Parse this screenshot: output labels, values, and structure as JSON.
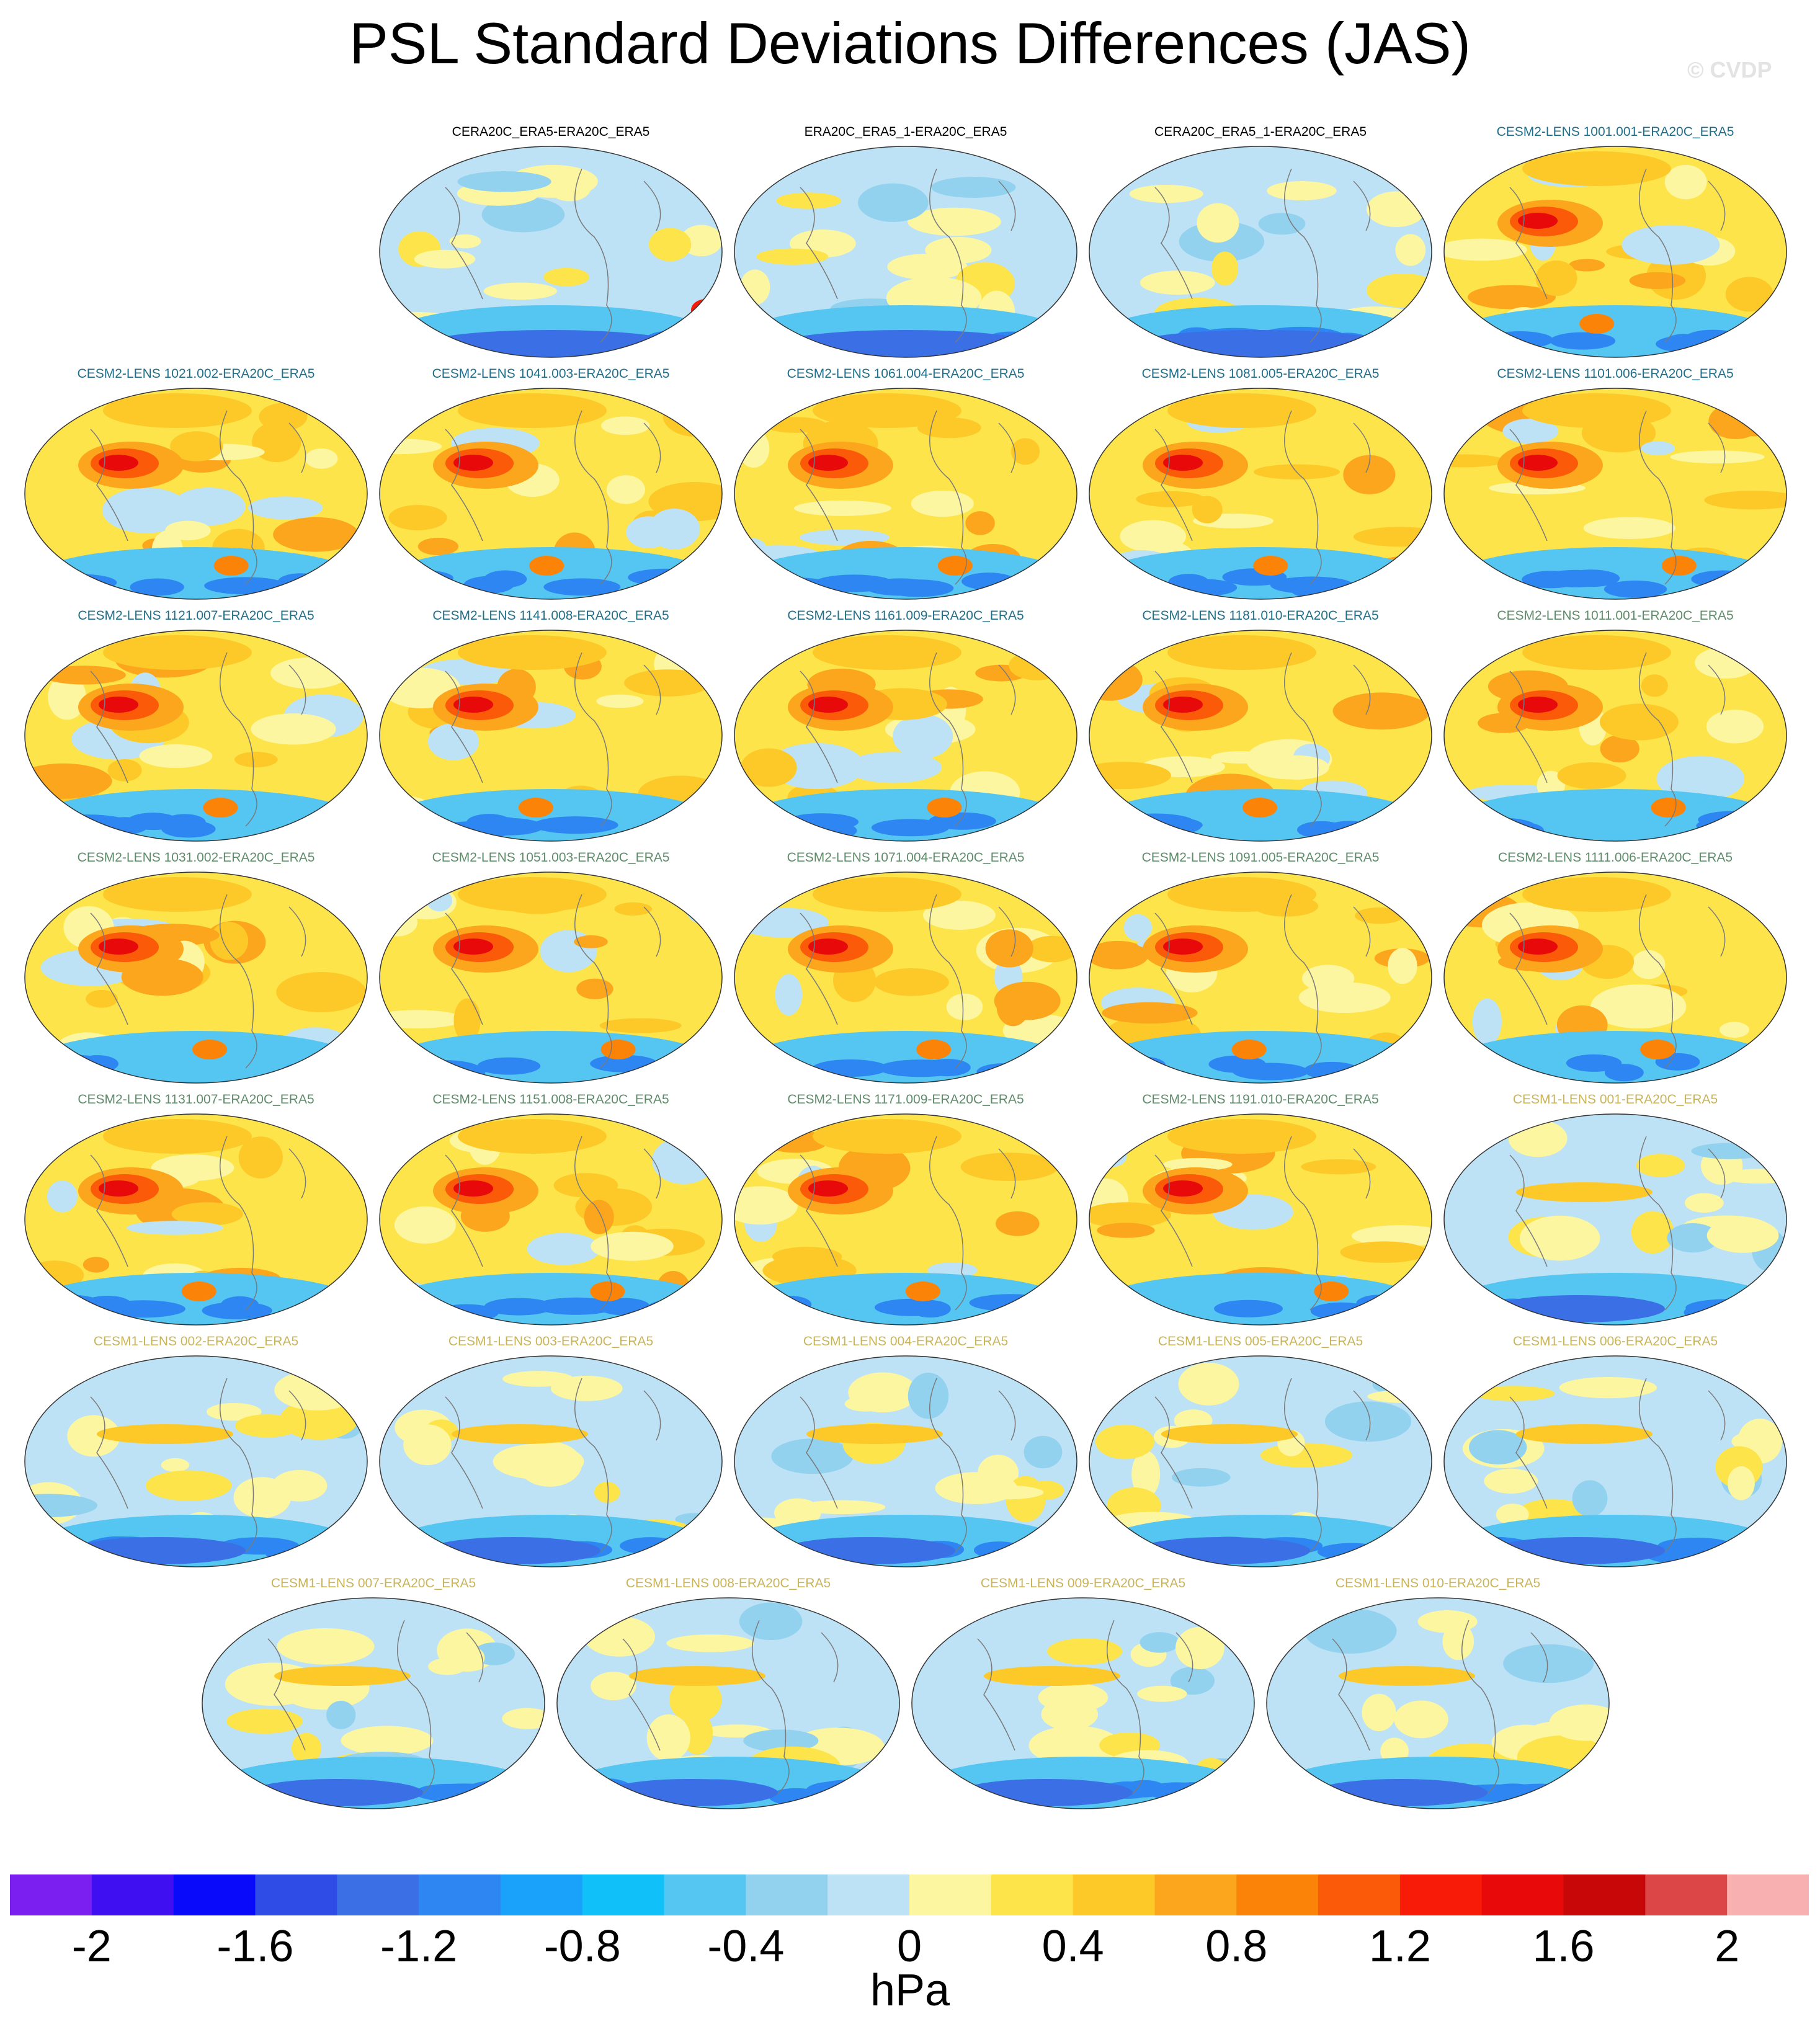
{
  "title": "PSL Standard Deviations Differences (JAS)",
  "watermark": "© CVDP",
  "colors": {
    "title_reanalysis": "#000000",
    "title_cesm2_a": "#1f6f8b",
    "title_cesm2_b": "#5e8c6a",
    "title_cesm1": "#c9b458"
  },
  "chart_data": {
    "type": "heatmap",
    "variable": "PSL",
    "season": "JAS",
    "projection": "global map",
    "colorbar": {
      "units": "hPa",
      "levels": [
        -2,
        -1.8,
        -1.6,
        -1.4,
        -1.2,
        -1,
        -0.8,
        -0.6,
        -0.4,
        -0.2,
        0,
        0.2,
        0.4,
        0.6,
        0.8,
        1,
        1.2,
        1.4,
        1.6,
        1.8,
        2
      ],
      "tick_labels": [
        "-2",
        "-1.6",
        "-1.2",
        "-0.8",
        "-0.4",
        "0",
        "0.4",
        "0.8",
        "1.2",
        "1.6",
        "2"
      ],
      "colors": [
        "#7b1ff0",
        "#3f0ff2",
        "#0a0afa",
        "#2f4ce6",
        "#3a6fe6",
        "#2d86f2",
        "#1aa2fa",
        "#10c0f8",
        "#55c6f2",
        "#93d2ef",
        "#bde2f5",
        "#fdf6a0",
        "#fde44a",
        "#fdc928",
        "#fba61c",
        "#fb8408",
        "#fb5a08",
        "#f81c08",
        "#e80a0a",
        "#c80808",
        "#dc4646",
        "#f8b0b0"
      ]
    },
    "panels": [
      {
        "name": "CERA20C_ERA5-ERA20C_ERA5",
        "group": "reanalysis"
      },
      {
        "name": "ERA20C_ERA5_1-ERA20C_ERA5",
        "group": "reanalysis"
      },
      {
        "name": "CERA20C_ERA5_1-ERA20C_ERA5",
        "group": "reanalysis"
      },
      {
        "name": "CESM2-LENS 1001.001-ERA20C_ERA5",
        "group": "cesm2_a"
      },
      {
        "name": "CESM2-LENS 1021.002-ERA20C_ERA5",
        "group": "cesm2_a"
      },
      {
        "name": "CESM2-LENS 1041.003-ERA20C_ERA5",
        "group": "cesm2_a"
      },
      {
        "name": "CESM2-LENS 1061.004-ERA20C_ERA5",
        "group": "cesm2_a"
      },
      {
        "name": "CESM2-LENS 1081.005-ERA20C_ERA5",
        "group": "cesm2_a"
      },
      {
        "name": "CESM2-LENS 1101.006-ERA20C_ERA5",
        "group": "cesm2_a"
      },
      {
        "name": "CESM2-LENS 1121.007-ERA20C_ERA5",
        "group": "cesm2_a"
      },
      {
        "name": "CESM2-LENS 1141.008-ERA20C_ERA5",
        "group": "cesm2_a"
      },
      {
        "name": "CESM2-LENS 1161.009-ERA20C_ERA5",
        "group": "cesm2_a"
      },
      {
        "name": "CESM2-LENS 1181.010-ERA20C_ERA5",
        "group": "cesm2_a"
      },
      {
        "name": "CESM2-LENS 1011.001-ERA20C_ERA5",
        "group": "cesm2_b"
      },
      {
        "name": "CESM2-LENS 1031.002-ERA20C_ERA5",
        "group": "cesm2_b"
      },
      {
        "name": "CESM2-LENS 1051.003-ERA20C_ERA5",
        "group": "cesm2_b"
      },
      {
        "name": "CESM2-LENS 1071.004-ERA20C_ERA5",
        "group": "cesm2_b"
      },
      {
        "name": "CESM2-LENS 1091.005-ERA20C_ERA5",
        "group": "cesm2_b"
      },
      {
        "name": "CESM2-LENS 1111.006-ERA20C_ERA5",
        "group": "cesm2_b"
      },
      {
        "name": "CESM2-LENS 1131.007-ERA20C_ERA5",
        "group": "cesm2_b"
      },
      {
        "name": "CESM2-LENS 1151.008-ERA20C_ERA5",
        "group": "cesm2_b"
      },
      {
        "name": "CESM2-LENS 1171.009-ERA20C_ERA5",
        "group": "cesm2_b"
      },
      {
        "name": "CESM2-LENS 1191.010-ERA20C_ERA5",
        "group": "cesm2_b"
      },
      {
        "name": "CESM1-LENS 001-ERA20C_ERA5",
        "group": "cesm1"
      },
      {
        "name": "CESM1-LENS 002-ERA20C_ERA5",
        "group": "cesm1"
      },
      {
        "name": "CESM1-LENS 003-ERA20C_ERA5",
        "group": "cesm1"
      },
      {
        "name": "CESM1-LENS 004-ERA20C_ERA5",
        "group": "cesm1"
      },
      {
        "name": "CESM1-LENS 005-ERA20C_ERA5",
        "group": "cesm1"
      },
      {
        "name": "CESM1-LENS 006-ERA20C_ERA5",
        "group": "cesm1"
      },
      {
        "name": "CESM1-LENS 007-ERA20C_ERA5",
        "group": "cesm1"
      },
      {
        "name": "CESM1-LENS 008-ERA20C_ERA5",
        "group": "cesm1"
      },
      {
        "name": "CESM1-LENS 009-ERA20C_ERA5",
        "group": "cesm1"
      },
      {
        "name": "CESM1-LENS 010-ERA20C_ERA5",
        "group": "cesm1"
      }
    ]
  }
}
